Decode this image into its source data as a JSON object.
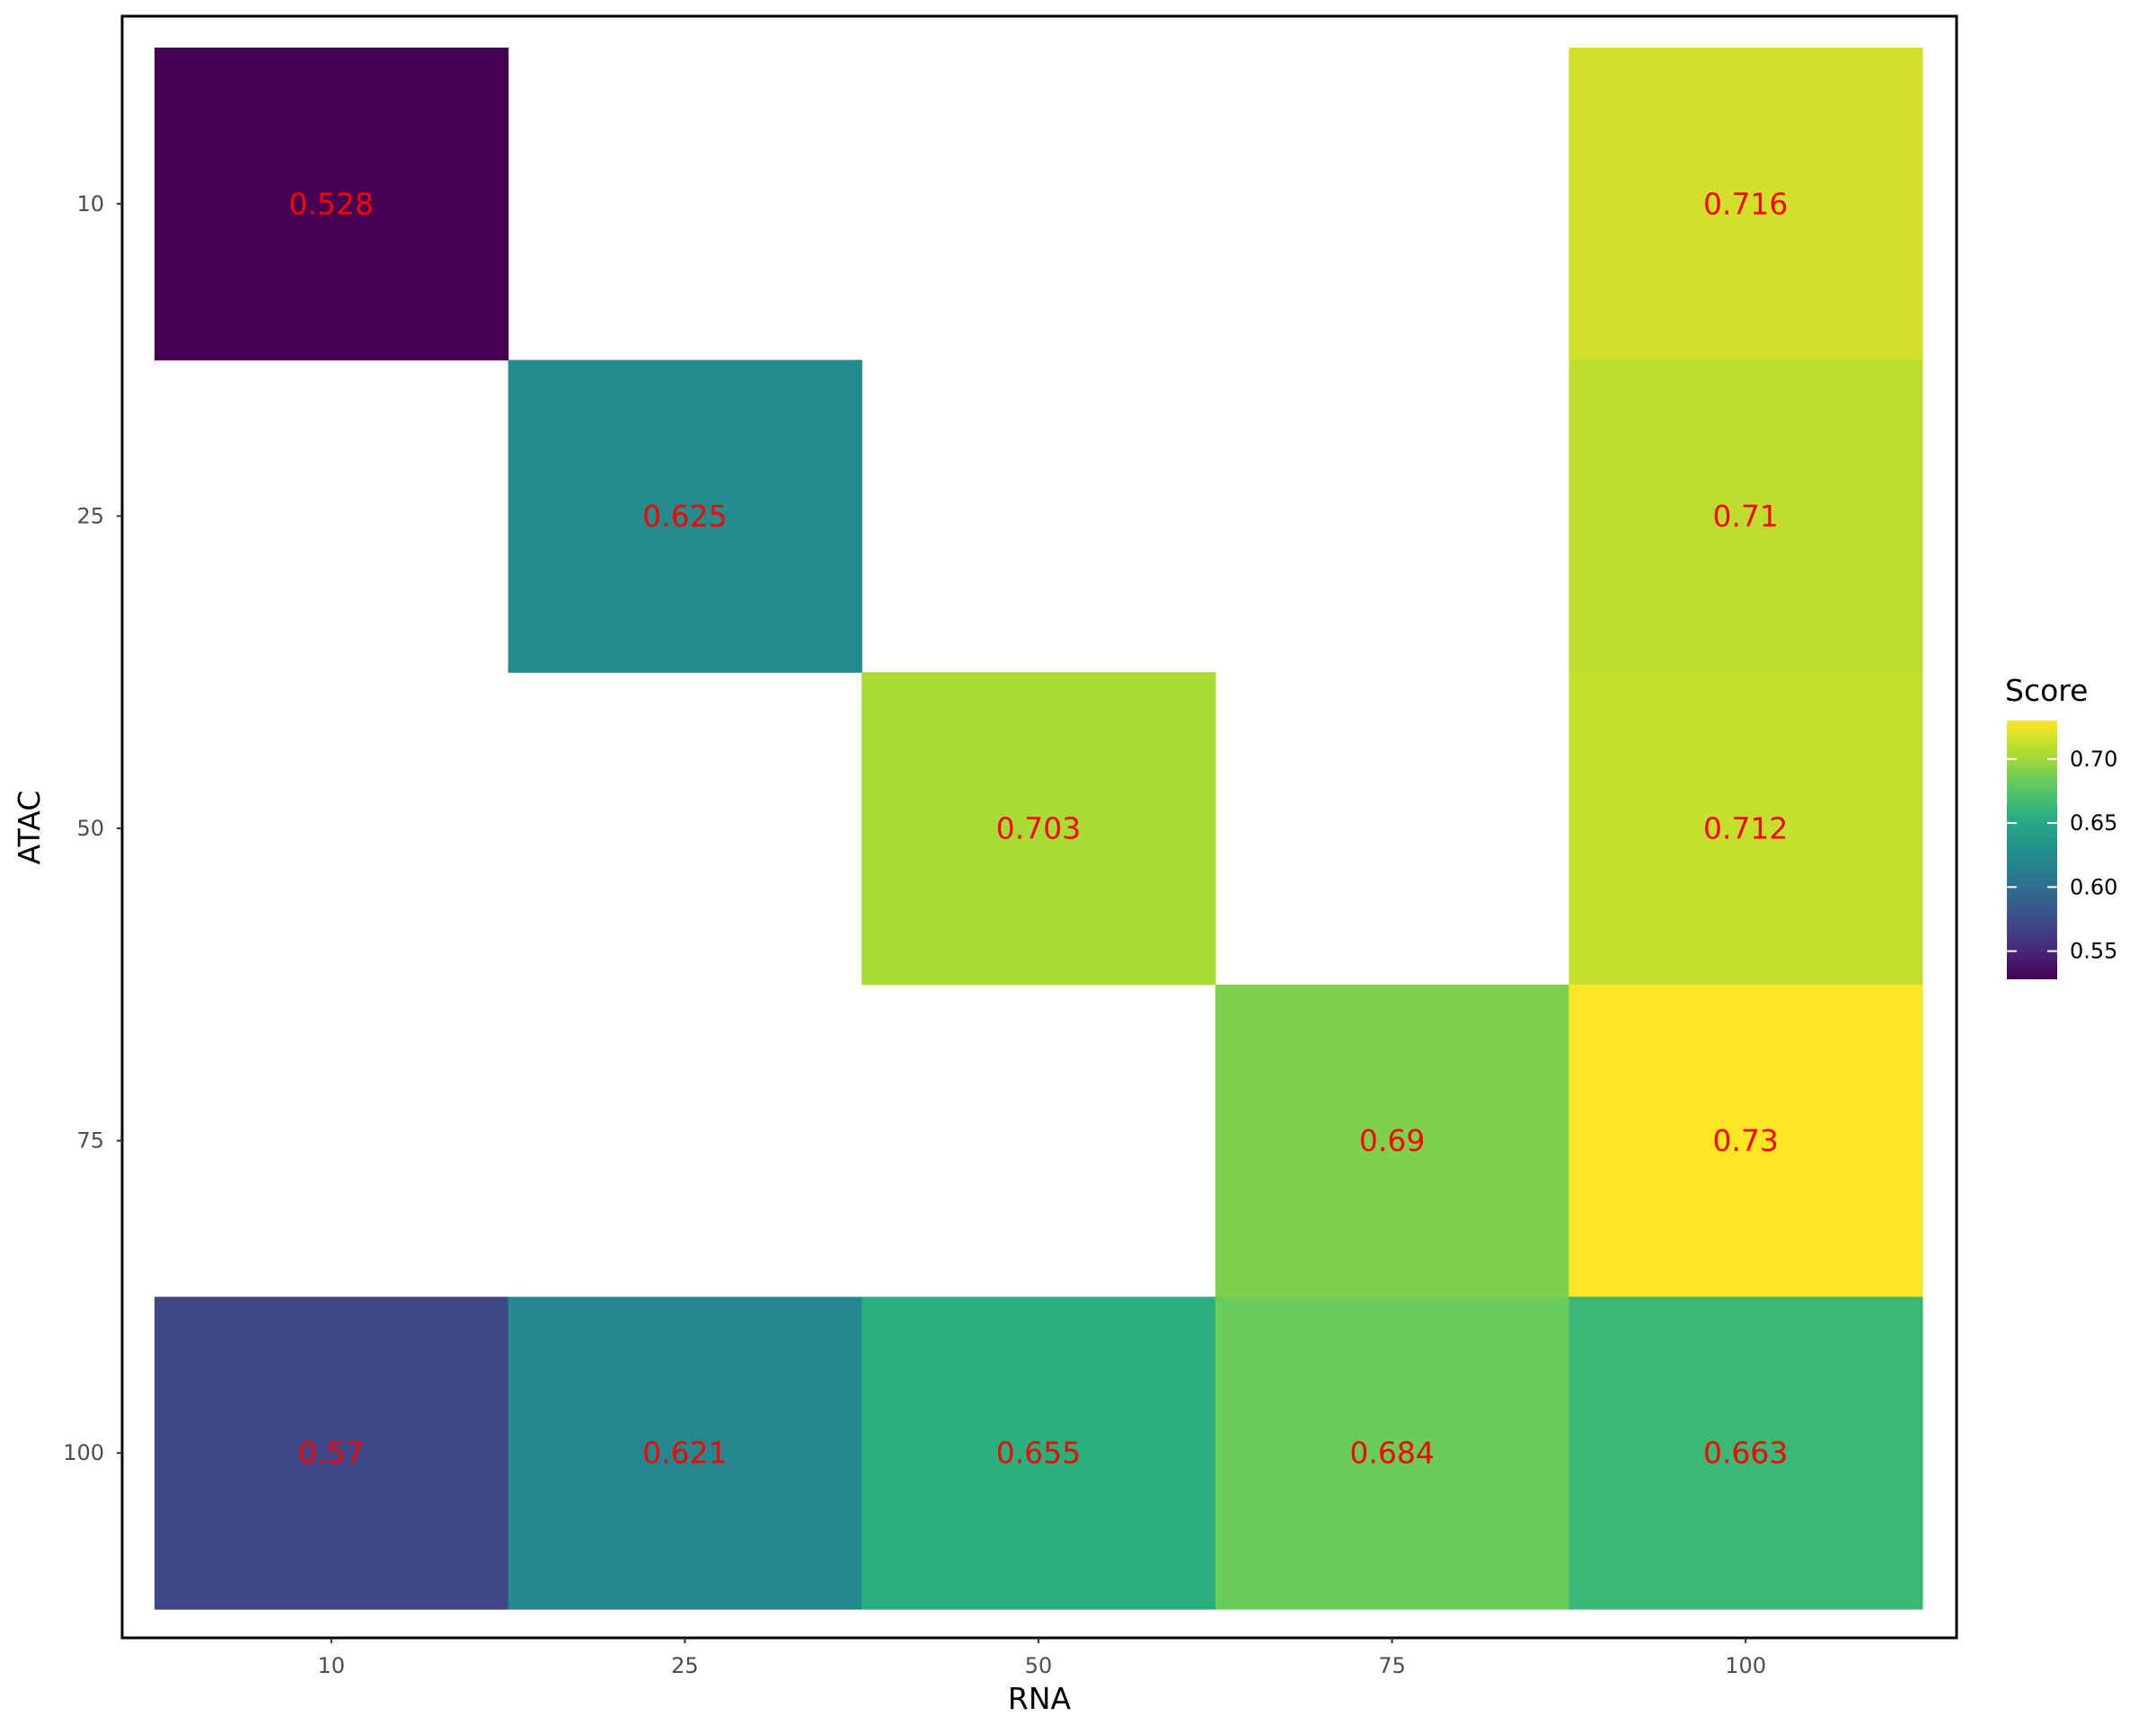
{
  "chart_data": {
    "type": "heatmap",
    "title": "",
    "xlabel": "RNA",
    "ylabel": "ATAC",
    "x_categories": [
      "10",
      "25",
      "50",
      "75",
      "100"
    ],
    "y_categories": [
      "10",
      "25",
      "50",
      "75",
      "100"
    ],
    "cells": [
      {
        "x": "10",
        "y": "10",
        "value": 0.528,
        "label": "0.528"
      },
      {
        "x": "100",
        "y": "10",
        "value": 0.716,
        "label": "0.716"
      },
      {
        "x": "25",
        "y": "25",
        "value": 0.625,
        "label": "0.625"
      },
      {
        "x": "100",
        "y": "25",
        "value": 0.71,
        "label": "0.71"
      },
      {
        "x": "50",
        "y": "50",
        "value": 0.703,
        "label": "0.703"
      },
      {
        "x": "100",
        "y": "50",
        "value": 0.712,
        "label": "0.712"
      },
      {
        "x": "75",
        "y": "75",
        "value": 0.69,
        "label": "0.69"
      },
      {
        "x": "100",
        "y": "75",
        "value": 0.73,
        "label": "0.73"
      },
      {
        "x": "10",
        "y": "100",
        "value": 0.57,
        "label": "0.57"
      },
      {
        "x": "25",
        "y": "100",
        "value": 0.621,
        "label": "0.621"
      },
      {
        "x": "50",
        "y": "100",
        "value": 0.655,
        "label": "0.655"
      },
      {
        "x": "75",
        "y": "100",
        "value": 0.684,
        "label": "0.684"
      },
      {
        "x": "100",
        "y": "100",
        "value": 0.663,
        "label": "0.663"
      }
    ],
    "label_color": "#ff0000",
    "colorscale": "viridis",
    "color_range": [
      0.528,
      0.73
    ],
    "legend": {
      "title": "Score",
      "position": "right",
      "ticks": [
        0.55,
        0.6,
        0.65,
        0.7
      ],
      "tick_labels": [
        "0.55",
        "0.60",
        "0.65",
        "0.70"
      ]
    },
    "grid": false,
    "panel_border": true
  }
}
